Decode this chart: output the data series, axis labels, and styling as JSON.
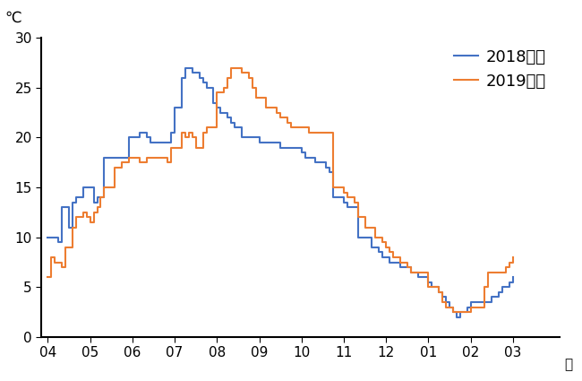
{
  "title_ylabel": "℃",
  "xlabel": "月",
  "ylim": [
    0,
    30
  ],
  "yticks": [
    0,
    5,
    10,
    15,
    20,
    25,
    30
  ],
  "xtick_labels": [
    "04",
    "05",
    "06",
    "07",
    "08",
    "09",
    "10",
    "11",
    "12",
    "01",
    "02",
    "03"
  ],
  "legend_labels": [
    "2018年度",
    "2019年度"
  ],
  "color_2018": "#4472C4",
  "color_2019": "#ED7D31",
  "line_width": 1.5,
  "x_2018": [
    0.0,
    0.083,
    0.167,
    0.25,
    0.333,
    0.417,
    0.5,
    0.583,
    0.667,
    0.75,
    0.833,
    0.917,
    1.0,
    1.083,
    1.167,
    1.333,
    1.5,
    1.583,
    1.667,
    1.75,
    1.833,
    1.917,
    2.0,
    2.083,
    2.167,
    2.25,
    2.333,
    2.417,
    2.5,
    2.583,
    2.667,
    2.75,
    2.833,
    2.917,
    3.0,
    3.083,
    3.167,
    3.25,
    3.333,
    3.417,
    3.5,
    3.583,
    3.667,
    3.75,
    3.833,
    3.917,
    4.0,
    4.083,
    4.167,
    4.25,
    4.333,
    4.417,
    4.5,
    4.583,
    4.667,
    4.75,
    4.833,
    4.917,
    5.0,
    5.167,
    5.333,
    5.5,
    5.667,
    5.75,
    5.833,
    5.917,
    6.0,
    6.083,
    6.167,
    6.25,
    6.333,
    6.417,
    6.5,
    6.583,
    6.667,
    6.75,
    6.833,
    6.917,
    7.0,
    7.083,
    7.167,
    7.25,
    7.333,
    7.5,
    7.583,
    7.667,
    7.75,
    7.833,
    7.917,
    8.0,
    8.083,
    8.167,
    8.333,
    8.5,
    8.583,
    8.667,
    8.75,
    8.833,
    8.917,
    9.0,
    9.083,
    9.167,
    9.25,
    9.333,
    9.417,
    9.5,
    9.583,
    9.667,
    9.75,
    9.833,
    9.917,
    10.0,
    10.083,
    10.167,
    10.25,
    10.333,
    10.417,
    10.5,
    10.583,
    10.667,
    10.75,
    10.833,
    10.917,
    11.0
  ],
  "y_2018": [
    10.0,
    10.0,
    10.0,
    9.5,
    13.0,
    13.0,
    11.0,
    13.5,
    14.0,
    14.0,
    15.0,
    15.0,
    15.0,
    13.5,
    14.0,
    18.0,
    18.0,
    18.0,
    18.0,
    18.0,
    18.0,
    20.0,
    20.0,
    20.0,
    20.5,
    20.5,
    20.0,
    19.5,
    19.5,
    19.5,
    19.5,
    19.5,
    19.5,
    20.5,
    23.0,
    23.0,
    26.0,
    27.0,
    27.0,
    26.5,
    26.5,
    26.0,
    25.5,
    25.0,
    25.0,
    23.5,
    23.0,
    22.5,
    22.5,
    22.0,
    21.5,
    21.0,
    21.0,
    20.0,
    20.0,
    20.0,
    20.0,
    20.0,
    19.5,
    19.5,
    19.5,
    19.0,
    19.0,
    19.0,
    19.0,
    19.0,
    18.5,
    18.0,
    18.0,
    18.0,
    17.5,
    17.5,
    17.5,
    17.0,
    16.5,
    14.0,
    14.0,
    14.0,
    13.5,
    13.0,
    13.0,
    13.0,
    10.0,
    10.0,
    10.0,
    9.0,
    9.0,
    8.5,
    8.0,
    8.0,
    7.5,
    7.5,
    7.0,
    7.0,
    6.5,
    6.5,
    6.0,
    6.0,
    6.0,
    5.5,
    5.0,
    5.0,
    4.5,
    4.0,
    3.5,
    3.0,
    2.5,
    2.0,
    2.5,
    2.5,
    3.0,
    3.5,
    3.5,
    3.5,
    3.5,
    3.5,
    3.5,
    4.0,
    4.0,
    4.5,
    5.0,
    5.0,
    5.5,
    6.0
  ],
  "x_2019": [
    0.0,
    0.083,
    0.167,
    0.25,
    0.333,
    0.417,
    0.5,
    0.583,
    0.667,
    0.75,
    0.833,
    0.917,
    1.0,
    1.083,
    1.167,
    1.25,
    1.333,
    1.417,
    1.5,
    1.583,
    1.667,
    1.75,
    1.833,
    1.917,
    2.0,
    2.083,
    2.167,
    2.25,
    2.333,
    2.417,
    2.5,
    2.583,
    2.667,
    2.75,
    2.833,
    2.917,
    3.0,
    3.083,
    3.167,
    3.25,
    3.333,
    3.417,
    3.5,
    3.583,
    3.667,
    3.75,
    3.833,
    3.917,
    4.0,
    4.083,
    4.167,
    4.25,
    4.333,
    4.417,
    4.5,
    4.583,
    4.667,
    4.75,
    4.833,
    4.917,
    5.0,
    5.083,
    5.167,
    5.25,
    5.333,
    5.417,
    5.5,
    5.583,
    5.667,
    5.75,
    5.833,
    5.917,
    6.0,
    6.083,
    6.167,
    6.25,
    6.333,
    6.417,
    6.5,
    6.583,
    6.667,
    6.75,
    6.833,
    6.917,
    7.0,
    7.083,
    7.167,
    7.25,
    7.333,
    7.5,
    7.583,
    7.667,
    7.75,
    7.833,
    7.917,
    8.0,
    8.083,
    8.167,
    8.25,
    8.333,
    8.5,
    8.583,
    8.667,
    8.75,
    8.833,
    8.917,
    9.0,
    9.083,
    9.167,
    9.25,
    9.333,
    9.417,
    9.5,
    9.583,
    9.667,
    9.75,
    9.833,
    9.917,
    10.0,
    10.083,
    10.167,
    10.25,
    10.333,
    10.417,
    10.5,
    10.583,
    10.667,
    10.75,
    10.833,
    10.917,
    11.0
  ],
  "y_2019": [
    6.0,
    8.0,
    7.5,
    7.5,
    7.0,
    9.0,
    9.0,
    11.0,
    12.0,
    12.0,
    12.5,
    12.0,
    11.5,
    12.5,
    13.0,
    14.0,
    15.0,
    15.0,
    15.0,
    17.0,
    17.0,
    17.5,
    17.5,
    18.0,
    18.0,
    18.0,
    17.5,
    17.5,
    18.0,
    18.0,
    18.0,
    18.0,
    18.0,
    18.0,
    17.5,
    19.0,
    19.0,
    19.0,
    20.5,
    20.0,
    20.5,
    20.0,
    19.0,
    19.0,
    20.5,
    21.0,
    21.0,
    21.0,
    24.5,
    24.5,
    25.0,
    26.0,
    27.0,
    27.0,
    27.0,
    26.5,
    26.5,
    26.0,
    25.0,
    24.0,
    24.0,
    24.0,
    23.0,
    23.0,
    23.0,
    22.5,
    22.0,
    22.0,
    21.5,
    21.0,
    21.0,
    21.0,
    21.0,
    21.0,
    20.5,
    20.5,
    20.5,
    20.5,
    20.5,
    20.5,
    20.5,
    15.0,
    15.0,
    15.0,
    14.5,
    14.0,
    14.0,
    13.5,
    12.0,
    11.0,
    11.0,
    11.0,
    10.0,
    10.0,
    9.5,
    9.0,
    8.5,
    8.0,
    8.0,
    7.5,
    7.0,
    6.5,
    6.5,
    6.5,
    6.5,
    6.5,
    5.0,
    5.0,
    5.0,
    4.5,
    3.5,
    3.0,
    3.0,
    2.5,
    2.5,
    2.5,
    2.5,
    2.5,
    3.0,
    3.0,
    3.0,
    3.0,
    5.0,
    6.5,
    6.5,
    6.5,
    6.5,
    6.5,
    7.0,
    7.5,
    8.0
  ]
}
